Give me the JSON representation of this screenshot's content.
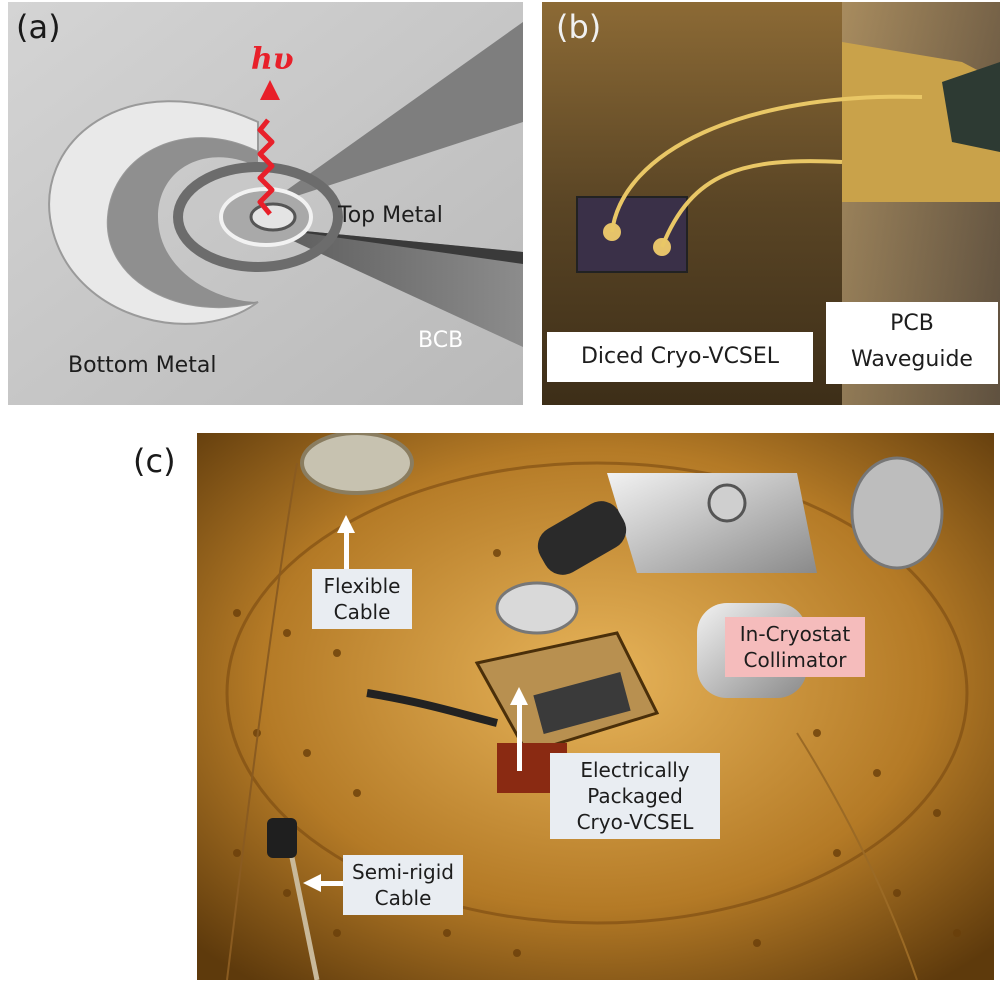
{
  "panel_a": {
    "label": "(a)",
    "photon_symbol": "hυ",
    "top_metal": "Top Metal",
    "bottom_metal": "Bottom Metal",
    "bcb": "BCB",
    "arrow_color": "#e8202a"
  },
  "panel_b": {
    "label": "(b)",
    "diced_label": "Diced Cryo-VCSEL",
    "pcb_line1": "PCB",
    "pcb_line2": "Waveguide"
  },
  "panel_c": {
    "label": "(c)",
    "flexible_line1": "Flexible",
    "flexible_line2": "Cable",
    "collimator_line1": "In-Cryostat",
    "collimator_line2": "Collimator",
    "packaged_line1": "Electrically",
    "packaged_line2": "Packaged",
    "packaged_line3": "Cryo-VCSEL",
    "semirigid_line1": "Semi-rigid",
    "semirigid_line2": "Cable",
    "highlight_color": "#f5bcbc"
  }
}
